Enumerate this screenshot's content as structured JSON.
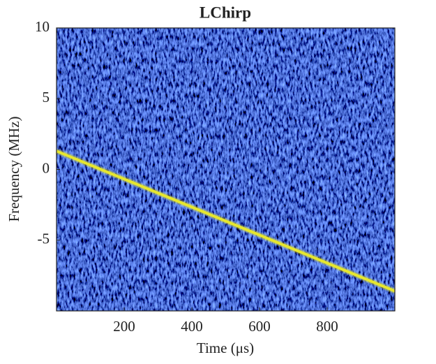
{
  "chart_data": {
    "type": "line",
    "title": "LChirp",
    "x_label": "Time  (μs)",
    "y_label": "Frequency (MHz)",
    "x": [
      0,
      1000
    ],
    "series": [
      {
        "values": [
          1.3,
          -8.6
        ],
        "color": "#e6e62e"
      }
    ],
    "xlim": [
      0,
      1000
    ],
    "xticks": [
      200,
      400,
      600,
      800
    ],
    "ylim": [
      -10,
      10
    ],
    "yticks": [
      -5,
      0,
      5,
      10
    ]
  }
}
